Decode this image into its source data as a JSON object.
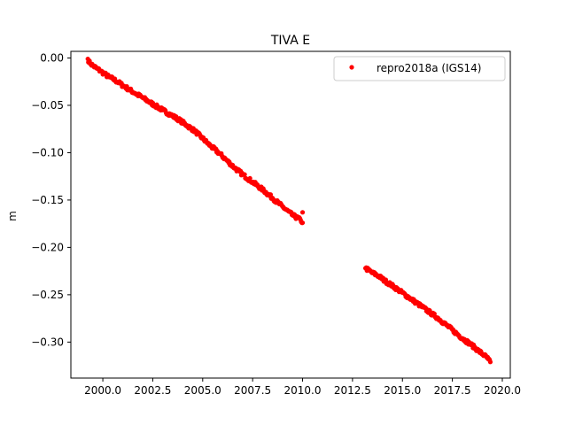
{
  "chart_data": {
    "type": "scatter",
    "title": "TIVA E",
    "xlabel": "",
    "ylabel": "m",
    "xlim": [
      1998.4,
      2020.4
    ],
    "ylim": [
      -0.338,
      0.007
    ],
    "x_ticks": [
      2000.0,
      2002.5,
      2005.0,
      2007.5,
      2010.0,
      2012.5,
      2015.0,
      2017.5,
      2020.0
    ],
    "x_tick_labels": [
      "2000.0",
      "2002.5",
      "2005.0",
      "2007.5",
      "2010.0",
      "2012.5",
      "2015.0",
      "2017.5",
      "2020.0"
    ],
    "y_ticks": [
      0.0,
      -0.05,
      -0.1,
      -0.15,
      -0.2,
      -0.25,
      -0.3
    ],
    "y_tick_labels": [
      "0.00",
      "−0.05",
      "−0.10",
      "−0.15",
      "−0.20",
      "−0.25",
      "−0.30"
    ],
    "grid": false,
    "legend_position": "top-right",
    "series": [
      {
        "name": "repro2018a (IGS14)",
        "color": "#ff0000",
        "marker": "circle",
        "points": [
          [
            1999.25,
            -0.001
          ],
          [
            1999.3,
            -0.004
          ],
          [
            1999.4,
            -0.006
          ],
          [
            1999.5,
            -0.008
          ],
          [
            1999.7,
            -0.011
          ],
          [
            1999.9,
            -0.014
          ],
          [
            2000.1,
            -0.017
          ],
          [
            2000.3,
            -0.02
          ],
          [
            2000.5,
            -0.022
          ],
          [
            2000.8,
            -0.026
          ],
          [
            2001.0,
            -0.029
          ],
          [
            2001.3,
            -0.033
          ],
          [
            2001.6,
            -0.037
          ],
          [
            2002.0,
            -0.042
          ],
          [
            2002.3,
            -0.046
          ],
          [
            2002.6,
            -0.05
          ],
          [
            2003.0,
            -0.055
          ],
          [
            2003.4,
            -0.06
          ],
          [
            2003.8,
            -0.065
          ],
          [
            2004.2,
            -0.071
          ],
          [
            2004.6,
            -0.077
          ],
          [
            2005.0,
            -0.085
          ],
          [
            2005.4,
            -0.093
          ],
          [
            2005.8,
            -0.1
          ],
          [
            2006.2,
            -0.108
          ],
          [
            2006.6,
            -0.116
          ],
          [
            2007.0,
            -0.123
          ],
          [
            2007.5,
            -0.131
          ],
          [
            2008.0,
            -0.139
          ],
          [
            2008.5,
            -0.148
          ],
          [
            2009.0,
            -0.157
          ],
          [
            2009.5,
            -0.166
          ],
          [
            2009.9,
            -0.171
          ],
          [
            2010.0,
            -0.174
          ],
          [
            2010.0,
            -0.163
          ],
          [
            2013.15,
            -0.222
          ],
          [
            2013.3,
            -0.224
          ],
          [
            2013.5,
            -0.227
          ],
          [
            2013.8,
            -0.23
          ],
          [
            2014.1,
            -0.235
          ],
          [
            2014.4,
            -0.239
          ],
          [
            2014.8,
            -0.245
          ],
          [
            2015.2,
            -0.251
          ],
          [
            2015.6,
            -0.257
          ],
          [
            2016.0,
            -0.263
          ],
          [
            2016.4,
            -0.269
          ],
          [
            2016.8,
            -0.275
          ],
          [
            2017.2,
            -0.282
          ],
          [
            2017.6,
            -0.289
          ],
          [
            2018.0,
            -0.296
          ],
          [
            2018.4,
            -0.302
          ],
          [
            2018.8,
            -0.309
          ],
          [
            2019.1,
            -0.314
          ],
          [
            2019.3,
            -0.318
          ],
          [
            2019.4,
            -0.321
          ]
        ]
      }
    ]
  }
}
